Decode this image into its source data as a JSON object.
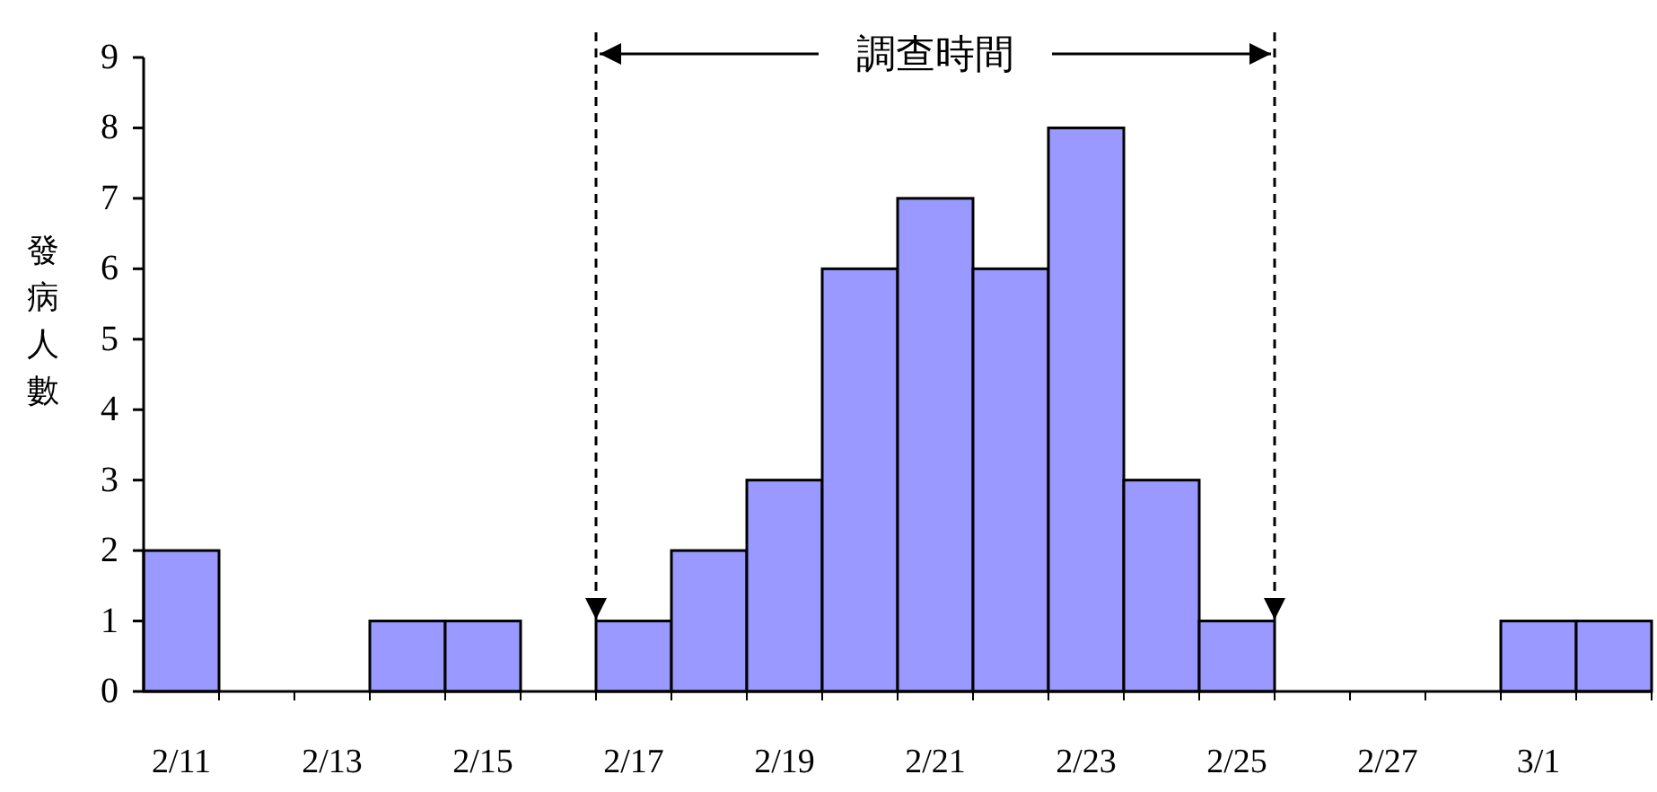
{
  "chart_data": {
    "type": "bar",
    "ylabel": "發病人數",
    "categories": [
      "2/11",
      null,
      "2/13",
      null,
      "2/15",
      null,
      "2/17",
      null,
      "2/19",
      null,
      "2/21",
      null,
      "2/23",
      null,
      "2/25",
      null,
      "2/27",
      null,
      "3/1",
      null
    ],
    "values": [
      2,
      0,
      0,
      1,
      1,
      0,
      1,
      2,
      3,
      6,
      7,
      6,
      8,
      3,
      1,
      0,
      0,
      0,
      1,
      1
    ],
    "color": "#9999ff",
    "ylim": [
      0,
      9
    ],
    "yticks": [
      0,
      1,
      2,
      3,
      4,
      5,
      6,
      7,
      8,
      9
    ],
    "grid": false,
    "annotations": [
      "調查時間"
    ]
  }
}
